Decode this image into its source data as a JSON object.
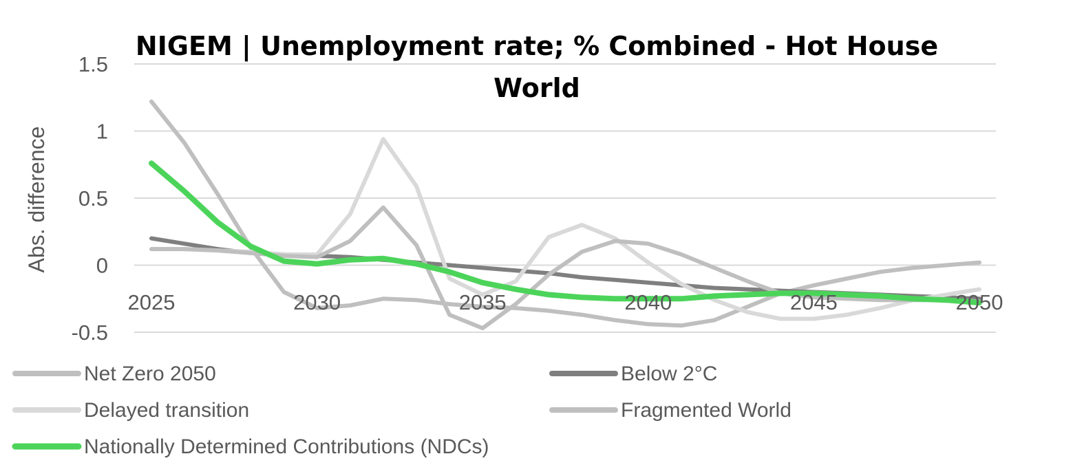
{
  "chart_data": {
    "type": "line",
    "title_line1": "NIGEM | Unemployment rate; % Combined - Hot House",
    "title_line2": "World",
    "xlabel": "",
    "ylabel": "Abs. difference",
    "xlim": [
      2025,
      2050
    ],
    "ylim": [
      -0.5,
      1.5
    ],
    "x_ticks": [
      "2025",
      "2030",
      "2035",
      "2040",
      "2045",
      "2050"
    ],
    "y_ticks": [
      "1.5",
      "1",
      "0.5",
      "0",
      "-0.5"
    ],
    "grid": true,
    "legend_position": "bottom",
    "x": [
      2025,
      2026,
      2027,
      2028,
      2029,
      2030,
      2031,
      2032,
      2033,
      2034,
      2035,
      2036,
      2037,
      2038,
      2039,
      2040,
      2041,
      2042,
      2043,
      2044,
      2045,
      2046,
      2047,
      2048,
      2049,
      2050
    ],
    "series": [
      {
        "name": "Net Zero 2050",
        "color": "#bfbfbf",
        "values": [
          1.22,
          0.91,
          0.53,
          0.13,
          -0.2,
          -0.32,
          -0.3,
          -0.25,
          -0.26,
          -0.29,
          -0.31,
          -0.32,
          -0.34,
          -0.37,
          -0.41,
          -0.44,
          -0.45,
          -0.41,
          -0.31,
          -0.21,
          -0.15,
          -0.1,
          -0.05,
          -0.02,
          0.0,
          0.02
        ]
      },
      {
        "name": "Below 2°C",
        "color": "#7f7f7f",
        "values": [
          0.2,
          0.16,
          0.12,
          0.09,
          0.08,
          0.07,
          0.06,
          0.04,
          0.02,
          0.0,
          -0.02,
          -0.04,
          -0.06,
          -0.09,
          -0.11,
          -0.13,
          -0.15,
          -0.17,
          -0.18,
          -0.19,
          -0.2,
          -0.21,
          -0.22,
          -0.23,
          -0.24,
          -0.25
        ]
      },
      {
        "name": "Delayed transition",
        "color": "#d9d9d9",
        "values": [
          0.12,
          0.12,
          0.11,
          0.1,
          0.08,
          0.08,
          0.38,
          0.94,
          0.59,
          -0.1,
          -0.22,
          -0.12,
          0.21,
          0.3,
          0.2,
          0.02,
          -0.14,
          -0.26,
          -0.35,
          -0.4,
          -0.4,
          -0.37,
          -0.32,
          -0.26,
          -0.22,
          -0.18
        ]
      },
      {
        "name": "Fragmented World",
        "color": "#bfbfbf",
        "values": [
          0.12,
          0.12,
          0.11,
          0.09,
          0.07,
          0.06,
          0.18,
          0.43,
          0.15,
          -0.37,
          -0.47,
          -0.29,
          -0.07,
          0.1,
          0.18,
          0.16,
          0.08,
          -0.02,
          -0.12,
          -0.21,
          -0.24,
          -0.25,
          -0.26,
          -0.26,
          -0.26,
          -0.27
        ]
      },
      {
        "name": "Nationally Determined Contributions (NDCs)",
        "color": "#4cd45a",
        "values": [
          0.76,
          0.55,
          0.32,
          0.14,
          0.03,
          0.01,
          0.04,
          0.05,
          0.01,
          -0.05,
          -0.13,
          -0.18,
          -0.22,
          -0.24,
          -0.25,
          -0.25,
          -0.25,
          -0.23,
          -0.22,
          -0.21,
          -0.21,
          -0.22,
          -0.23,
          -0.25,
          -0.26,
          -0.28
        ]
      }
    ]
  }
}
